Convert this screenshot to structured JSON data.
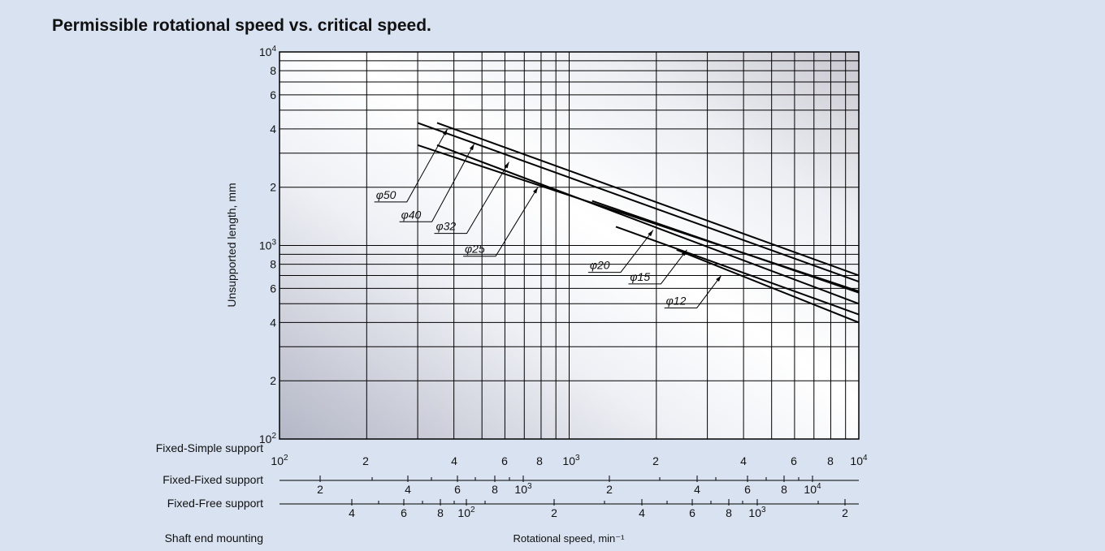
{
  "title": "Permissible rotational speed vs. critical speed.",
  "chart_data": {
    "type": "line",
    "title": "Permissible rotational speed vs. critical speed.",
    "ylabel": "Unsupported length, mm",
    "xlabel": "Rotational speed, min⁻¹",
    "x_scale": "log",
    "y_scale": "log",
    "xlim": [
      100,
      10000
    ],
    "ylim": [
      100,
      10000
    ],
    "grid": true,
    "y_ticks": [
      {
        "value": 100,
        "label": "10",
        "sup": "2"
      },
      {
        "value": 200,
        "label": "2",
        "sup": ""
      },
      {
        "value": 400,
        "label": "4",
        "sup": ""
      },
      {
        "value": 600,
        "label": "6",
        "sup": ""
      },
      {
        "value": 800,
        "label": "8",
        "sup": ""
      },
      {
        "value": 1000,
        "label": "10",
        "sup": "3"
      },
      {
        "value": 2000,
        "label": "2",
        "sup": ""
      },
      {
        "value": 4000,
        "label": "4",
        "sup": ""
      },
      {
        "value": 6000,
        "label": "6",
        "sup": ""
      },
      {
        "value": 8000,
        "label": "8",
        "sup": ""
      },
      {
        "value": 10000,
        "label": "10",
        "sup": "4"
      }
    ],
    "series": [
      {
        "name": "φ50",
        "x": [
          300,
          10000
        ],
        "y": [
          4300,
          650
        ],
        "label_at": {
          "x": 380,
          "y": 4000
        }
      },
      {
        "name": "φ40",
        "x": [
          350,
          10000
        ],
        "y": [
          4300,
          700
        ],
        "label_at": {
          "x": 470,
          "y": 3350
        }
      },
      {
        "name": "φ32",
        "x": [
          300,
          10000
        ],
        "y": [
          3300,
          580
        ],
        "label_at": {
          "x": 620,
          "y": 2700
        }
      },
      {
        "name": "φ25",
        "x": [
          350,
          10000
        ],
        "y": [
          3300,
          500
        ],
        "label_at": {
          "x": 780,
          "y": 2000
        }
      },
      {
        "name": "φ20",
        "x": [
          1200,
          10000
        ],
        "y": [
          1700,
          570
        ],
        "label_at": {
          "x": 1950,
          "y": 1200
        }
      },
      {
        "name": "φ15",
        "x": [
          1450,
          10000
        ],
        "y": [
          1250,
          440
        ],
        "label_at": {
          "x": 2550,
          "y": 950
        }
      },
      {
        "name": "φ12",
        "x": [
          2350,
          10000
        ],
        "y": [
          950,
          400
        ],
        "label_at": {
          "x": 3350,
          "y": 700
        }
      }
    ]
  },
  "x_scales": [
    {
      "name": "Fixed-Simple support",
      "ticks": [
        {
          "label": "10",
          "sup": "2"
        },
        {
          "label": "2",
          "sup": ""
        },
        {
          "label": "4",
          "sup": ""
        },
        {
          "label": "6",
          "sup": ""
        },
        {
          "label": "8",
          "sup": ""
        },
        {
          "label": "10",
          "sup": "3"
        },
        {
          "label": "2",
          "sup": ""
        },
        {
          "label": "4",
          "sup": ""
        },
        {
          "label": "6",
          "sup": ""
        },
        {
          "label": "8",
          "sup": ""
        },
        {
          "label": "10",
          "sup": "4"
        }
      ]
    },
    {
      "name": "Fixed-Fixed support",
      "ticks": [
        {
          "label": "2",
          "sup": ""
        },
        {
          "label": "4",
          "sup": ""
        },
        {
          "label": "6",
          "sup": ""
        },
        {
          "label": "8",
          "sup": ""
        },
        {
          "label": "10",
          "sup": "3"
        },
        {
          "label": "2",
          "sup": ""
        },
        {
          "label": "4",
          "sup": ""
        },
        {
          "label": "6",
          "sup": ""
        },
        {
          "label": "8",
          "sup": ""
        },
        {
          "label": "10",
          "sup": "4"
        }
      ]
    },
    {
      "name": "Fixed-Free support",
      "ticks": [
        {
          "label": "4",
          "sup": ""
        },
        {
          "label": "6",
          "sup": ""
        },
        {
          "label": "8",
          "sup": ""
        },
        {
          "label": "10",
          "sup": "2"
        },
        {
          "label": "2",
          "sup": ""
        },
        {
          "label": "4",
          "sup": ""
        },
        {
          "label": "6",
          "sup": ""
        },
        {
          "label": "8",
          "sup": ""
        },
        {
          "label": "10",
          "sup": "3"
        },
        {
          "label": "2",
          "sup": ""
        }
      ]
    }
  ],
  "mounting_label": "Shaft end mounting",
  "colors": {
    "background": "#d9e2f0",
    "plot_light": "#ffffff",
    "plot_dark": "#c3c6d3",
    "line": "#000000"
  }
}
